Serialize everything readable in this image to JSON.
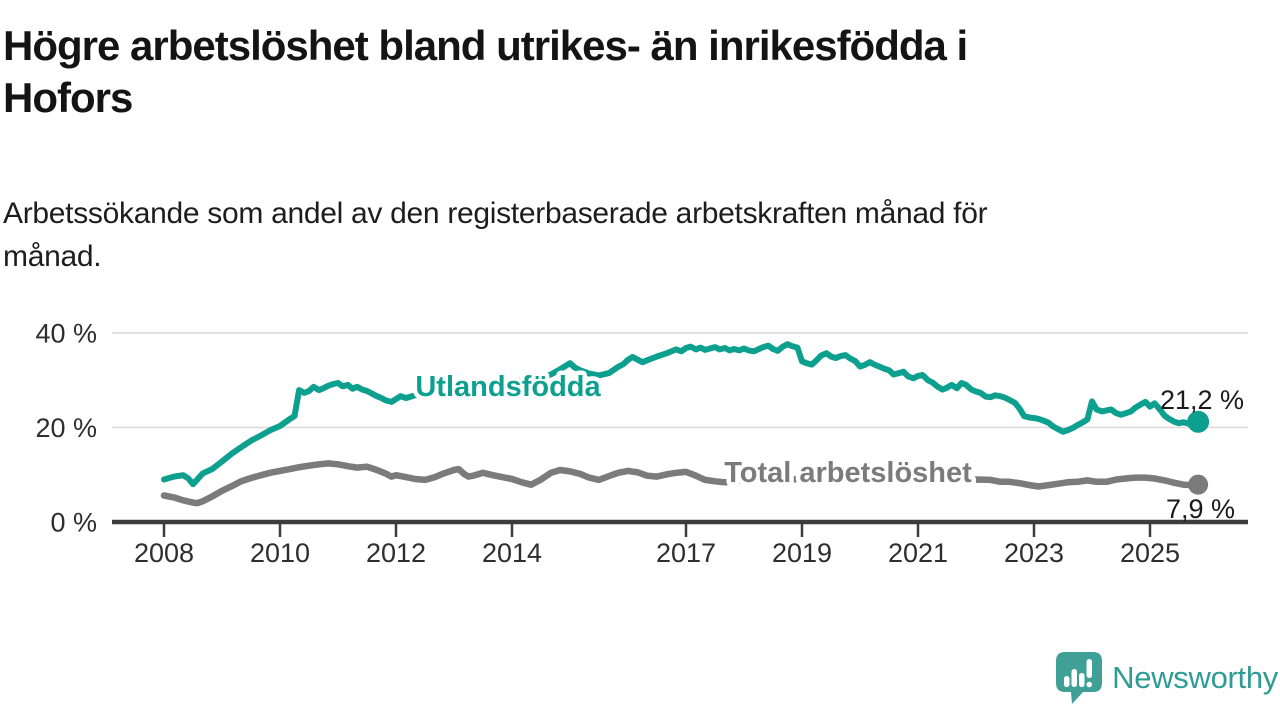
{
  "header": {
    "title_lines": [
      "Högre arbetslöshet bland utrikes- än inrikesfödda i",
      "Hofors"
    ],
    "subtitle_lines": [
      "Arbetssökande som andel av den registerbaserade arbetskraften månad för",
      "månad."
    ]
  },
  "chart_data": {
    "type": "line",
    "title": "Högre arbetslöshet bland utrikes- än inrikesfödda i Hofors",
    "xlabel": "",
    "ylabel": "Arbetssökande som andel av den registerbaserade arbetskraften",
    "x_unit": "year (monthly observations)",
    "y_unit": "percent",
    "x_range": [
      2007.9,
      2026.7
    ],
    "y_range": [
      0,
      42
    ],
    "grid": true,
    "legend_position": "inline-labels-on-lines",
    "x_ticks": [
      2008,
      2010,
      2012,
      2014,
      2017,
      2019,
      2021,
      2023,
      2025
    ],
    "x_tick_labels": [
      "2008",
      "2010",
      "2012",
      "2014",
      "2017",
      "2019",
      "2021",
      "2023",
      "2025"
    ],
    "y_ticks": [
      {
        "value": 0,
        "label": "0 %"
      },
      {
        "value": 20,
        "label": "20 %"
      },
      {
        "value": 40,
        "label": "40 %"
      }
    ],
    "series": [
      {
        "name": "Utlandsfödda",
        "color": "#0DA08F",
        "end_label": "21,2 %",
        "end_value": 21.2,
        "points": [
          [
            2008.0,
            9.0
          ],
          [
            2008.17,
            9.6
          ],
          [
            2008.33,
            9.9
          ],
          [
            2008.42,
            9.2
          ],
          [
            2008.5,
            8.0
          ],
          [
            2008.67,
            10.3
          ],
          [
            2008.83,
            11.2
          ],
          [
            2009.0,
            12.8
          ],
          [
            2009.17,
            14.5
          ],
          [
            2009.33,
            15.8
          ],
          [
            2009.5,
            17.2
          ],
          [
            2009.67,
            18.3
          ],
          [
            2009.83,
            19.4
          ],
          [
            2010.0,
            20.3
          ],
          [
            2010.17,
            21.8
          ],
          [
            2010.25,
            22.4
          ],
          [
            2010.33,
            27.9
          ],
          [
            2010.42,
            27.3
          ],
          [
            2010.5,
            27.7
          ],
          [
            2010.58,
            28.6
          ],
          [
            2010.67,
            27.9
          ],
          [
            2010.75,
            28.3
          ],
          [
            2010.83,
            28.8
          ],
          [
            2010.92,
            29.2
          ],
          [
            2011.0,
            29.4
          ],
          [
            2011.08,
            28.7
          ],
          [
            2011.17,
            29.0
          ],
          [
            2011.25,
            28.2
          ],
          [
            2011.33,
            28.6
          ],
          [
            2011.42,
            28.0
          ],
          [
            2011.5,
            27.7
          ],
          [
            2011.58,
            27.2
          ],
          [
            2011.67,
            26.6
          ],
          [
            2011.75,
            26.2
          ],
          [
            2011.83,
            25.7
          ],
          [
            2011.92,
            25.4
          ],
          [
            2012.0,
            26.0
          ],
          [
            2012.08,
            26.6
          ],
          [
            2012.17,
            26.2
          ],
          [
            2012.33,
            26.8
          ],
          [
            2012.5,
            27.1
          ],
          [
            2012.67,
            27.5
          ],
          [
            2012.83,
            27.2
          ],
          [
            2013.0,
            27.9
          ],
          [
            2013.17,
            28.3
          ],
          [
            2013.33,
            28.0
          ],
          [
            2013.5,
            28.7
          ],
          [
            2013.67,
            29.2
          ],
          [
            2013.83,
            29.0
          ],
          [
            2014.0,
            29.6
          ],
          [
            2014.17,
            30.1
          ],
          [
            2014.33,
            29.8
          ],
          [
            2014.5,
            30.6
          ],
          [
            2014.67,
            31.2
          ],
          [
            2014.83,
            32.3
          ],
          [
            2014.92,
            33.0
          ],
          [
            2015.0,
            33.6
          ],
          [
            2015.08,
            32.7
          ],
          [
            2015.17,
            32.1
          ],
          [
            2015.33,
            31.4
          ],
          [
            2015.5,
            31.0
          ],
          [
            2015.67,
            31.5
          ],
          [
            2015.83,
            32.8
          ],
          [
            2015.92,
            33.4
          ],
          [
            2016.0,
            34.3
          ],
          [
            2016.08,
            34.9
          ],
          [
            2016.17,
            34.3
          ],
          [
            2016.25,
            33.8
          ],
          [
            2016.33,
            34.2
          ],
          [
            2016.5,
            35.0
          ],
          [
            2016.67,
            35.7
          ],
          [
            2016.83,
            36.5
          ],
          [
            2016.92,
            36.1
          ],
          [
            2017.0,
            36.8
          ],
          [
            2017.08,
            37.1
          ],
          [
            2017.17,
            36.5
          ],
          [
            2017.25,
            36.9
          ],
          [
            2017.33,
            36.4
          ],
          [
            2017.5,
            37.0
          ],
          [
            2017.58,
            36.5
          ],
          [
            2017.67,
            36.8
          ],
          [
            2017.75,
            36.3
          ],
          [
            2017.83,
            36.6
          ],
          [
            2017.92,
            36.3
          ],
          [
            2018.0,
            36.7
          ],
          [
            2018.08,
            36.3
          ],
          [
            2018.17,
            36.1
          ],
          [
            2018.33,
            37.0
          ],
          [
            2018.42,
            37.3
          ],
          [
            2018.5,
            36.6
          ],
          [
            2018.58,
            36.2
          ],
          [
            2018.67,
            37.1
          ],
          [
            2018.75,
            37.6
          ],
          [
            2018.83,
            37.2
          ],
          [
            2018.92,
            36.9
          ],
          [
            2019.0,
            34.0
          ],
          [
            2019.08,
            33.6
          ],
          [
            2019.17,
            33.3
          ],
          [
            2019.25,
            34.2
          ],
          [
            2019.33,
            35.2
          ],
          [
            2019.42,
            35.7
          ],
          [
            2019.5,
            35.0
          ],
          [
            2019.58,
            34.7
          ],
          [
            2019.67,
            35.1
          ],
          [
            2019.75,
            35.3
          ],
          [
            2019.83,
            34.6
          ],
          [
            2019.92,
            34.0
          ],
          [
            2020.0,
            32.9
          ],
          [
            2020.08,
            33.2
          ],
          [
            2020.17,
            33.8
          ],
          [
            2020.25,
            33.3
          ],
          [
            2020.33,
            32.9
          ],
          [
            2020.42,
            32.4
          ],
          [
            2020.5,
            32.1
          ],
          [
            2020.58,
            31.2
          ],
          [
            2020.67,
            31.5
          ],
          [
            2020.75,
            31.8
          ],
          [
            2020.83,
            30.8
          ],
          [
            2020.92,
            30.4
          ],
          [
            2021.0,
            30.9
          ],
          [
            2021.08,
            31.1
          ],
          [
            2021.17,
            30.0
          ],
          [
            2021.25,
            29.5
          ],
          [
            2021.33,
            28.7
          ],
          [
            2021.42,
            28.0
          ],
          [
            2021.5,
            28.4
          ],
          [
            2021.58,
            29.0
          ],
          [
            2021.67,
            28.3
          ],
          [
            2021.75,
            29.4
          ],
          [
            2021.83,
            29.0
          ],
          [
            2021.92,
            28.0
          ],
          [
            2022.0,
            27.6
          ],
          [
            2022.08,
            27.3
          ],
          [
            2022.17,
            26.5
          ],
          [
            2022.25,
            26.4
          ],
          [
            2022.33,
            26.8
          ],
          [
            2022.42,
            26.6
          ],
          [
            2022.5,
            26.3
          ],
          [
            2022.58,
            25.8
          ],
          [
            2022.67,
            25.2
          ],
          [
            2022.75,
            24.0
          ],
          [
            2022.83,
            22.4
          ],
          [
            2022.92,
            22.1
          ],
          [
            2023.0,
            22.0
          ],
          [
            2023.08,
            21.8
          ],
          [
            2023.17,
            21.4
          ],
          [
            2023.25,
            21.0
          ],
          [
            2023.33,
            20.2
          ],
          [
            2023.42,
            19.6
          ],
          [
            2023.5,
            19.1
          ],
          [
            2023.58,
            19.4
          ],
          [
            2023.67,
            19.9
          ],
          [
            2023.75,
            20.5
          ],
          [
            2023.83,
            21.0
          ],
          [
            2023.92,
            21.7
          ],
          [
            2024.0,
            25.5
          ],
          [
            2024.08,
            23.8
          ],
          [
            2024.17,
            23.4
          ],
          [
            2024.25,
            23.6
          ],
          [
            2024.33,
            23.8
          ],
          [
            2024.42,
            23.0
          ],
          [
            2024.5,
            22.7
          ],
          [
            2024.58,
            23.0
          ],
          [
            2024.67,
            23.4
          ],
          [
            2024.75,
            24.2
          ],
          [
            2024.83,
            24.8
          ],
          [
            2024.92,
            25.4
          ],
          [
            2025.0,
            24.4
          ],
          [
            2025.08,
            25.1
          ],
          [
            2025.17,
            23.8
          ],
          [
            2025.25,
            22.5
          ],
          [
            2025.33,
            21.8
          ],
          [
            2025.42,
            21.2
          ],
          [
            2025.5,
            20.9
          ],
          [
            2025.58,
            21.1
          ],
          [
            2025.67,
            20.8
          ],
          [
            2025.75,
            21.0
          ],
          [
            2025.83,
            21.2
          ]
        ]
      },
      {
        "name": "Total arbetslöshet",
        "color": "#7B7B7B",
        "end_label": "7,9 %",
        "end_value": 7.9,
        "points": [
          [
            2008.0,
            5.6
          ],
          [
            2008.17,
            5.2
          ],
          [
            2008.33,
            4.6
          ],
          [
            2008.5,
            4.1
          ],
          [
            2008.58,
            4.0
          ],
          [
            2008.67,
            4.4
          ],
          [
            2008.83,
            5.4
          ],
          [
            2009.0,
            6.6
          ],
          [
            2009.17,
            7.6
          ],
          [
            2009.33,
            8.6
          ],
          [
            2009.5,
            9.3
          ],
          [
            2009.67,
            9.9
          ],
          [
            2009.83,
            10.4
          ],
          [
            2010.0,
            10.8
          ],
          [
            2010.17,
            11.2
          ],
          [
            2010.33,
            11.6
          ],
          [
            2010.5,
            11.9
          ],
          [
            2010.67,
            12.2
          ],
          [
            2010.83,
            12.4
          ],
          [
            2011.0,
            12.2
          ],
          [
            2011.17,
            11.8
          ],
          [
            2011.33,
            11.5
          ],
          [
            2011.5,
            11.7
          ],
          [
            2011.67,
            11.0
          ],
          [
            2011.83,
            10.2
          ],
          [
            2011.92,
            9.6
          ],
          [
            2012.0,
            9.9
          ],
          [
            2012.17,
            9.5
          ],
          [
            2012.33,
            9.1
          ],
          [
            2012.5,
            8.9
          ],
          [
            2012.67,
            9.5
          ],
          [
            2012.83,
            10.3
          ],
          [
            2013.0,
            11.0
          ],
          [
            2013.08,
            11.2
          ],
          [
            2013.17,
            10.2
          ],
          [
            2013.25,
            9.6
          ],
          [
            2013.33,
            9.8
          ],
          [
            2013.5,
            10.4
          ],
          [
            2013.67,
            9.9
          ],
          [
            2013.83,
            9.5
          ],
          [
            2014.0,
            9.1
          ],
          [
            2014.17,
            8.4
          ],
          [
            2014.33,
            7.9
          ],
          [
            2014.5,
            9.0
          ],
          [
            2014.67,
            10.4
          ],
          [
            2014.83,
            11.0
          ],
          [
            2015.0,
            10.7
          ],
          [
            2015.17,
            10.2
          ],
          [
            2015.33,
            9.4
          ],
          [
            2015.5,
            8.9
          ],
          [
            2015.67,
            9.7
          ],
          [
            2015.83,
            10.4
          ],
          [
            2016.0,
            10.8
          ],
          [
            2016.17,
            10.5
          ],
          [
            2016.33,
            9.8
          ],
          [
            2016.5,
            9.6
          ],
          [
            2016.67,
            10.1
          ],
          [
            2016.83,
            10.4
          ],
          [
            2017.0,
            10.6
          ],
          [
            2017.17,
            9.8
          ],
          [
            2017.33,
            8.9
          ],
          [
            2017.5,
            8.6
          ],
          [
            2017.67,
            8.4
          ],
          [
            2017.83,
            8.6
          ],
          [
            2018.0,
            8.8
          ],
          [
            2018.25,
            9.0
          ],
          [
            2018.5,
            8.7
          ],
          [
            2018.75,
            8.9
          ],
          [
            2019.0,
            9.2
          ],
          [
            2019.25,
            9.0
          ],
          [
            2019.5,
            8.8
          ],
          [
            2019.75,
            9.1
          ],
          [
            2020.0,
            9.4
          ],
          [
            2020.25,
            9.6
          ],
          [
            2020.5,
            9.3
          ],
          [
            2020.75,
            9.0
          ],
          [
            2021.0,
            8.9
          ],
          [
            2021.25,
            8.8
          ],
          [
            2021.5,
            8.7
          ],
          [
            2021.75,
            8.9
          ],
          [
            2022.0,
            9.0
          ],
          [
            2022.25,
            8.9
          ],
          [
            2022.42,
            8.5
          ],
          [
            2022.58,
            8.5
          ],
          [
            2022.75,
            8.2
          ],
          [
            2022.92,
            7.8
          ],
          [
            2023.08,
            7.5
          ],
          [
            2023.25,
            7.8
          ],
          [
            2023.42,
            8.1
          ],
          [
            2023.58,
            8.4
          ],
          [
            2023.75,
            8.5
          ],
          [
            2023.92,
            8.8
          ],
          [
            2024.08,
            8.5
          ],
          [
            2024.25,
            8.5
          ],
          [
            2024.42,
            9.0
          ],
          [
            2024.58,
            9.2
          ],
          [
            2024.75,
            9.4
          ],
          [
            2024.92,
            9.4
          ],
          [
            2025.08,
            9.2
          ],
          [
            2025.25,
            8.8
          ],
          [
            2025.42,
            8.3
          ],
          [
            2025.58,
            7.9
          ],
          [
            2025.75,
            7.8
          ],
          [
            2025.83,
            7.9
          ]
        ]
      }
    ],
    "colors": {
      "gridline": "#DBDBDB",
      "axis": "#3C3C3C",
      "tick_label": "#2E2E2E",
      "value_label": "#1A1A1A"
    }
  },
  "footer": {
    "brand": "Newsworthy",
    "logo_icon": "speech-bubble-bar-chart-icon",
    "brand_color": "#2F9C94",
    "icon_color": "#3EA096"
  }
}
